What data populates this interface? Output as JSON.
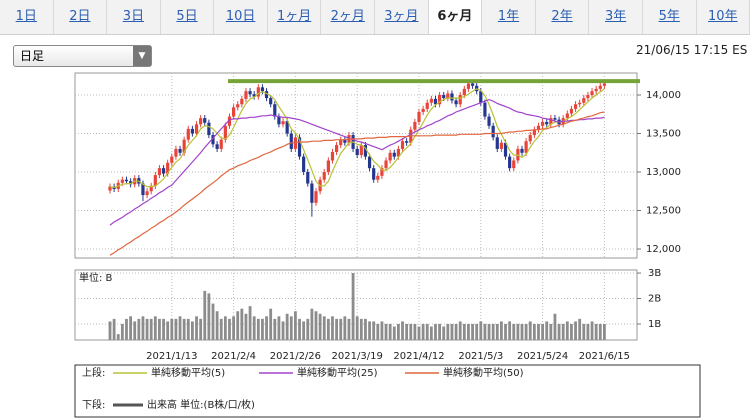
{
  "tabs": {
    "items": [
      "1日",
      "2日",
      "3日",
      "5日",
      "10日",
      "1ヶ月",
      "2ヶ月",
      "3ヶ月",
      "6ヶ月",
      "1年",
      "2年",
      "3年",
      "5年",
      "10年"
    ],
    "selected": 8
  },
  "dropdown": "日足",
  "timestamp": "21/06/15 17:15 ES",
  "chart_data": {
    "type": "candlestick",
    "categories": [
      null,
      null,
      null,
      null,
      null,
      null,
      null,
      null,
      null,
      null,
      null,
      null,
      null,
      null,
      null,
      "2021/1/13",
      null,
      null,
      null,
      null,
      null,
      null,
      null,
      null,
      null,
      null,
      null,
      null,
      null,
      null,
      "2021/2/4",
      null,
      null,
      null,
      null,
      null,
      null,
      null,
      null,
      null,
      null,
      null,
      null,
      null,
      null,
      "2021/2/26",
      null,
      null,
      null,
      null,
      null,
      null,
      null,
      null,
      null,
      null,
      null,
      null,
      null,
      null,
      "2021/3/19",
      null,
      null,
      null,
      null,
      null,
      null,
      null,
      null,
      null,
      null,
      null,
      null,
      null,
      null,
      "2021/4/12",
      null,
      null,
      null,
      null,
      null,
      null,
      null,
      null,
      null,
      null,
      null,
      null,
      null,
      null,
      "2021/5/3",
      null,
      null,
      null,
      null,
      null,
      null,
      null,
      null,
      null,
      null,
      null,
      null,
      null,
      null,
      "2021/5/24",
      null,
      null,
      null,
      null,
      null,
      null,
      null,
      null,
      null,
      null,
      null,
      null,
      null,
      null,
      "2021/6/15"
    ],
    "open": [
      12760,
      12810,
      12780,
      12860,
      12900,
      12880,
      12840,
      12920,
      12850,
      12700,
      12750,
      12820,
      12960,
      13050,
      12980,
      13120,
      13200,
      13300,
      13250,
      13420,
      13560,
      13500,
      13620,
      13700,
      13640,
      13480,
      13360,
      13300,
      13420,
      13600,
      13720,
      13840,
      13880,
      13950,
      14050,
      14010,
      13980,
      14100,
      14050,
      13960,
      13880,
      13720,
      13620,
      13660,
      13500,
      13300,
      13450,
      13200,
      13000,
      12850,
      12600,
      12750,
      12900,
      13000,
      13150,
      13260,
      13350,
      13420,
      13380,
      13480,
      13300,
      13220,
      13350,
      13200,
      13050,
      12900,
      12950,
      13050,
      13150,
      13250,
      13200,
      13300,
      13400,
      13380,
      13550,
      13650,
      13780,
      13820,
      13900,
      13950,
      13880,
      14000,
      13960,
      14020,
      13930,
      13880,
      14000,
      14080,
      14150,
      14120,
      14050,
      13900,
      13720,
      13600,
      13450,
      13300,
      13380,
      13200,
      13050,
      13150,
      13300,
      13250,
      13400,
      13480,
      13550,
      13600,
      13650,
      13620,
      13700,
      13680,
      13620,
      13700,
      13760,
      13820,
      13880,
      13900,
      13960,
      14000,
      14050,
      14080,
      14120
    ],
    "high": [
      12850,
      12850,
      12900,
      12940,
      12940,
      12920,
      12960,
      12960,
      12890,
      12790,
      12860,
      13000,
      13090,
      13090,
      13160,
      13240,
      13340,
      13340,
      13460,
      13600,
      13600,
      13660,
      13740,
      13740,
      13680,
      13520,
      13400,
      13460,
      13640,
      13760,
      13880,
      13920,
      13990,
      14090,
      14090,
      14050,
      14140,
      14140,
      14090,
      14000,
      13920,
      13760,
      13700,
      13700,
      13540,
      13490,
      13490,
      13240,
      13040,
      12890,
      12790,
      12940,
      13040,
      13190,
      13300,
      13390,
      13460,
      13460,
      13520,
      13520,
      13340,
      13390,
      13390,
      13240,
      13090,
      12990,
      13090,
      13190,
      13290,
      13290,
      13340,
      13440,
      13440,
      13590,
      13690,
      13820,
      13860,
      13940,
      13990,
      13990,
      14040,
      14040,
      14060,
      14060,
      13970,
      14040,
      14120,
      14190,
      14190,
      14160,
      14090,
      13940,
      13760,
      13640,
      13490,
      13420,
      13420,
      13240,
      13190,
      13340,
      13340,
      13440,
      13520,
      13590,
      13640,
      13690,
      13690,
      13740,
      13740,
      13720,
      13740,
      13800,
      13860,
      13920,
      13940,
      14000,
      14040,
      14090,
      14120,
      14160,
      14190
    ],
    "low": [
      12720,
      12740,
      12740,
      12820,
      12840,
      12800,
      12800,
      12810,
      12620,
      12660,
      12710,
      12780,
      12920,
      12940,
      12940,
      13080,
      13160,
      13210,
      13210,
      13380,
      13460,
      13460,
      13580,
      13600,
      13440,
      13320,
      13260,
      13260,
      13380,
      13560,
      13680,
      13800,
      13840,
      13910,
      13970,
      13940,
      13940,
      14010,
      13920,
      13840,
      13680,
      13580,
      13580,
      13460,
      13260,
      13260,
      13160,
      12960,
      12810,
      12420,
      12560,
      12710,
      12860,
      12960,
      13110,
      13220,
      13310,
      13340,
      13340,
      13260,
      13180,
      13180,
      13160,
      13010,
      12860,
      12860,
      12910,
      13010,
      13110,
      13160,
      13160,
      13260,
      13340,
      13340,
      13510,
      13610,
      13740,
      13780,
      13860,
      13840,
      13840,
      13920,
      13920,
      13890,
      13840,
      13840,
      13960,
      14040,
      14080,
      14010,
      13860,
      13680,
      13560,
      13410,
      13260,
      13260,
      13160,
      13010,
      13010,
      13110,
      13210,
      13210,
      13360,
      13440,
      13510,
      13560,
      13580,
      13580,
      13640,
      13580,
      13580,
      13660,
      13720,
      13780,
      13840,
      13860,
      13920,
      13960,
      14010,
      14040,
      14080
    ],
    "close": [
      12810,
      12780,
      12860,
      12900,
      12880,
      12840,
      12920,
      12850,
      12700,
      12750,
      12820,
      12960,
      13050,
      12980,
      13120,
      13200,
      13300,
      13250,
      13420,
      13560,
      13500,
      13620,
      13700,
      13640,
      13480,
      13360,
      13300,
      13420,
      13600,
      13720,
      13840,
      13880,
      13950,
      14050,
      14010,
      13980,
      14100,
      14050,
      13960,
      13880,
      13720,
      13620,
      13660,
      13500,
      13300,
      13450,
      13200,
      13000,
      12850,
      12600,
      12750,
      12900,
      13000,
      13150,
      13260,
      13350,
      13420,
      13380,
      13480,
      13300,
      13220,
      13350,
      13200,
      13050,
      12900,
      12950,
      13050,
      13150,
      13250,
      13200,
      13300,
      13400,
      13380,
      13550,
      13650,
      13780,
      13820,
      13900,
      13950,
      13880,
      14000,
      13960,
      14020,
      13930,
      13880,
      14000,
      14080,
      14150,
      14120,
      14050,
      13900,
      13720,
      13600,
      13450,
      13300,
      13380,
      13200,
      13050,
      13150,
      13300,
      13250,
      13400,
      13480,
      13550,
      13600,
      13650,
      13620,
      13700,
      13680,
      13620,
      13700,
      13760,
      13820,
      13880,
      13900,
      13960,
      14000,
      14050,
      14080,
      14120,
      14150
    ],
    "up_color": "#e8443a",
    "down_color": "#24378f",
    "ylim": [
      11883,
      14286
    ],
    "yticks": [
      {
        "value": 12000,
        "label": "12,000"
      },
      {
        "value": 12500,
        "label": "12,500"
      },
      {
        "value": 13000,
        "label": "13,000"
      },
      {
        "value": 13500,
        "label": "13,500"
      },
      {
        "value": 14000,
        "label": "14,000"
      }
    ],
    "grid": true,
    "hline": {
      "value": 14180,
      "color": "#76a337"
    },
    "lines": [
      {
        "name": "単純移動平均(5)",
        "color": "#b8c234",
        "values": [
          12810,
          12800,
          12820,
          12840,
          12850,
          12850,
          12880,
          12880,
          12840,
          12810,
          12810,
          12820,
          12860,
          12910,
          12990,
          13060,
          13130,
          13170,
          13260,
          13350,
          13410,
          13470,
          13560,
          13600,
          13590,
          13560,
          13500,
          13440,
          13430,
          13480,
          13580,
          13690,
          13800,
          13890,
          13950,
          13970,
          14020,
          14040,
          14020,
          13990,
          13940,
          13850,
          13770,
          13680,
          13560,
          13510,
          13420,
          13290,
          13160,
          13020,
          12880,
          12820,
          12820,
          12880,
          13010,
          13130,
          13240,
          13310,
          13380,
          13390,
          13360,
          13350,
          13310,
          13220,
          13140,
          13090,
          13030,
          13020,
          13060,
          13120,
          13190,
          13260,
          13310,
          13370,
          13460,
          13550,
          13640,
          13740,
          13820,
          13870,
          13910,
          13940,
          13960,
          13960,
          13960,
          13960,
          13980,
          14010,
          14050,
          14080,
          14060,
          13990,
          13880,
          13740,
          13590,
          13490,
          13390,
          13280,
          13220,
          13220,
          13190,
          13230,
          13320,
          13400,
          13460,
          13540,
          13580,
          13620,
          13650,
          13650,
          13660,
          13690,
          13720,
          13760,
          13810,
          13860,
          13910,
          13960,
          14000,
          14040,
          14080
        ]
      },
      {
        "name": "単純移動平均(25)",
        "color": "#a043cc",
        "values": [
          12310,
          12350,
          12380,
          12410,
          12450,
          12480,
          12520,
          12550,
          12590,
          12620,
          12660,
          12690,
          12730,
          12760,
          12800,
          12830,
          12890,
          12950,
          13010,
          13070,
          13130,
          13190,
          13250,
          13320,
          13380,
          13440,
          13500,
          13560,
          13620,
          13680,
          13690,
          13690,
          13700,
          13700,
          13710,
          13710,
          13720,
          13730,
          13730,
          13740,
          13730,
          13720,
          13710,
          13710,
          13700,
          13690,
          13680,
          13660,
          13640,
          13620,
          13600,
          13580,
          13560,
          13540,
          13520,
          13500,
          13480,
          13460,
          13440,
          13420,
          13400,
          13390,
          13370,
          13350,
          13330,
          13310,
          13290,
          13320,
          13350,
          13370,
          13400,
          13430,
          13460,
          13490,
          13520,
          13550,
          13570,
          13600,
          13620,
          13650,
          13670,
          13700,
          13730,
          13750,
          13780,
          13800,
          13820,
          13840,
          13860,
          13880,
          13900,
          13920,
          13940,
          13920,
          13890,
          13870,
          13850,
          13830,
          13800,
          13780,
          13770,
          13750,
          13740,
          13730,
          13720,
          13700,
          13690,
          13680,
          13660,
          13650,
          13660,
          13660,
          13670,
          13670,
          13680,
          13680,
          13690,
          13690,
          13700,
          13700,
          13710
        ]
      },
      {
        "name": "単純移動平均(50)",
        "color": "#e0673f",
        "values": [
          11920,
          11950,
          11990,
          12020,
          12060,
          12090,
          12130,
          12160,
          12200,
          12230,
          12270,
          12300,
          12340,
          12370,
          12410,
          12440,
          12480,
          12520,
          12570,
          12610,
          12650,
          12690,
          12730,
          12780,
          12820,
          12860,
          12900,
          12950,
          12990,
          13030,
          13050,
          13080,
          13100,
          13120,
          13150,
          13170,
          13190,
          13220,
          13240,
          13260,
          13290,
          13310,
          13330,
          13360,
          13380,
          13380,
          13390,
          13390,
          13390,
          13400,
          13400,
          13400,
          13410,
          13410,
          13410,
          13420,
          13420,
          13420,
          13430,
          13430,
          13430,
          13430,
          13440,
          13440,
          13440,
          13450,
          13450,
          13450,
          13460,
          13460,
          13460,
          13460,
          13460,
          13470,
          13470,
          13470,
          13470,
          13470,
          13470,
          13480,
          13480,
          13480,
          13480,
          13480,
          13480,
          13490,
          13490,
          13490,
          13490,
          13490,
          13490,
          13500,
          13500,
          13500,
          13500,
          13500,
          13510,
          13520,
          13520,
          13530,
          13530,
          13540,
          13540,
          13550,
          13550,
          13560,
          13560,
          13580,
          13590,
          13610,
          13620,
          13640,
          13660,
          13670,
          13690,
          13700,
          13720,
          13730,
          13750,
          13770,
          13780
        ]
      }
    ],
    "volume": {
      "label": "単位: B",
      "name": "出来高 単位:(B株/口/枚)",
      "color": "#8c8c8c",
      "ylim": [
        0.37,
        3.12
      ],
      "yticks": [
        {
          "value": 1,
          "label": "1B"
        },
        {
          "value": 2,
          "label": "2B"
        },
        {
          "value": 3,
          "label": "3B"
        }
      ],
      "values": [
        1.1,
        1.2,
        0.6,
        1.0,
        1.2,
        1.3,
        1.1,
        1.2,
        1.3,
        1.2,
        1.2,
        1.3,
        1.2,
        1.2,
        1.1,
        1.2,
        1.2,
        1.3,
        1.2,
        1.2,
        1.1,
        1.3,
        1.2,
        2.3,
        2.2,
        1.8,
        1.5,
        1.2,
        1.3,
        1.2,
        1.3,
        1.5,
        1.6,
        1.4,
        1.7,
        1.3,
        1.2,
        1.2,
        1.3,
        1.6,
        1.2,
        1.3,
        1.1,
        1.4,
        1.3,
        1.5,
        1.2,
        1.1,
        1.2,
        1.6,
        1.5,
        1.4,
        1.3,
        1.2,
        1.3,
        1.2,
        1.2,
        1.3,
        1.2,
        3.0,
        1.3,
        1.2,
        1.2,
        1.1,
        1.1,
        1.0,
        1.1,
        1.0,
        1.0,
        0.9,
        1.0,
        1.1,
        1.0,
        1.0,
        1.0,
        0.9,
        1.0,
        1.0,
        0.9,
        1.0,
        1.0,
        0.9,
        1.0,
        1.0,
        1.0,
        1.1,
        1.0,
        1.0,
        1.0,
        1.0,
        1.1,
        1.0,
        1.0,
        1.0,
        1.0,
        1.1,
        1.0,
        1.1,
        1.0,
        1.0,
        1.0,
        1.0,
        1.1,
        1.0,
        1.0,
        1.0,
        1.1,
        1.0,
        1.4,
        1.0,
        1.0,
        1.1,
        1.0,
        1.1,
        1.2,
        1.0,
        1.0,
        1.1,
        1.0,
        1.0,
        1.0
      ]
    },
    "legend": {
      "upper": "上段:",
      "lower": "下段:"
    }
  }
}
